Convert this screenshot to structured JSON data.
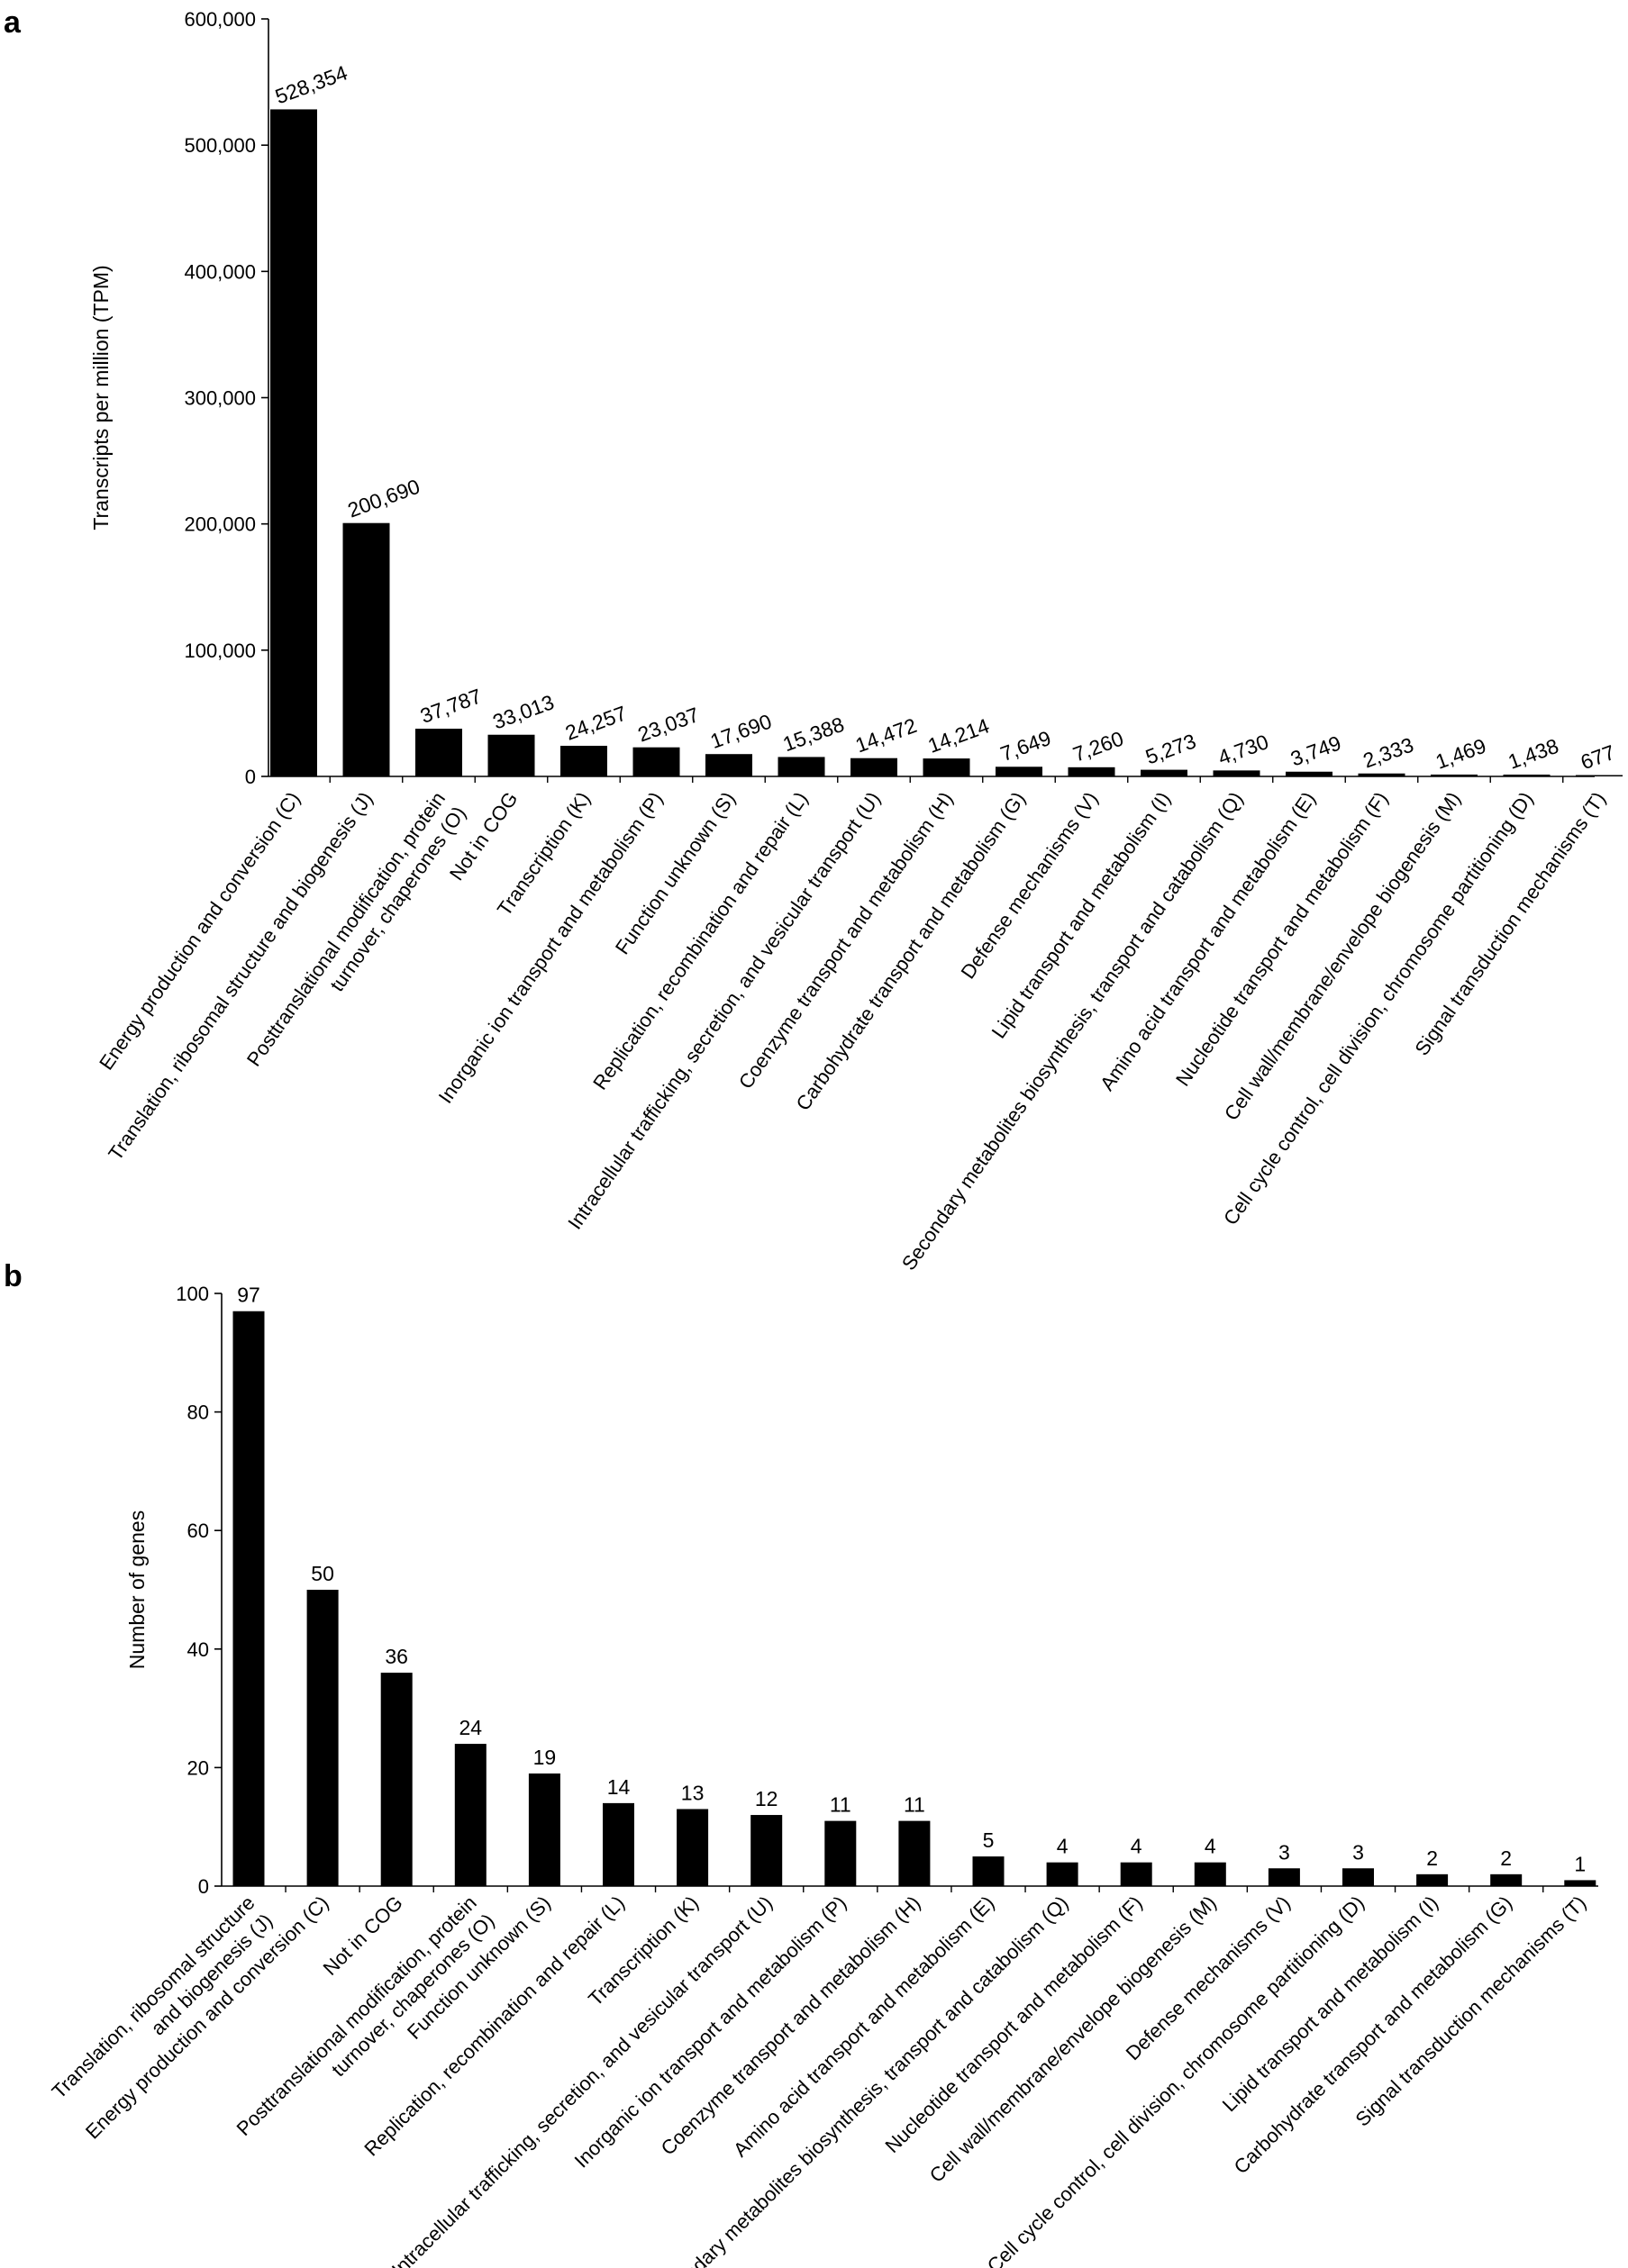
{
  "chart_data": [
    {
      "panel": "a",
      "type": "bar",
      "ylabel": "Transcripts per million (TPM)",
      "ylim": [
        0,
        600000
      ],
      "yticks": [
        0,
        100000,
        200000,
        300000,
        400000,
        500000,
        600000
      ],
      "ytick_labels": [
        "0",
        "100,000",
        "200,000",
        "300,000",
        "400,000",
        "500,000",
        "600,000"
      ],
      "categories": [
        [
          "Energy production and conversion (C)"
        ],
        [
          "Translation, ribosomal structure and biogenesis (J)"
        ],
        [
          "Posttranslational modification, protein",
          "turnover, chaperones (O)"
        ],
        [
          "Not in COG"
        ],
        [
          "Transcription (K)"
        ],
        [
          "Inorganic ion transport and metabolism (P)"
        ],
        [
          "Function unknown (S)"
        ],
        [
          "Replication, recombination and repair (L)"
        ],
        [
          "Intracellular trafficking, secretion, and vesicular transport (U)"
        ],
        [
          "Coenzyme transport and metabolism (H)"
        ],
        [
          "Carbohydrate transport and metabolism (G)"
        ],
        [
          "Defense mechanisms (V)"
        ],
        [
          "Lipid transport and metabolism (I)"
        ],
        [
          "Secondary metabolites biosynthesis, transport and catabolism (Q)"
        ],
        [
          "Amino acid transport and metabolism (E)"
        ],
        [
          "Nucleotide transport and metabolism (F)"
        ],
        [
          "Cell wall/membrane/envelope biogenesis (M)"
        ],
        [
          "Cell cycle control, cell division, chromosome partitioning (D)"
        ],
        [
          "Signal transduction mechanisms (T)"
        ]
      ],
      "values": [
        528354,
        200690,
        37787,
        33013,
        24257,
        23037,
        17690,
        15388,
        14472,
        14214,
        7649,
        7260,
        5273,
        4730,
        3749,
        2333,
        1469,
        1438,
        677
      ],
      "value_labels": [
        "528,354",
        "200,690",
        "37,787",
        "33,013",
        "24,257",
        "23,037",
        "17,690",
        "15,388",
        "14,472",
        "14,214",
        "7,649",
        "7,260",
        "5,273",
        "4,730",
        "3,749",
        "2,333",
        "1,469",
        "1,438",
        "677"
      ],
      "label_rotation": "-20deg",
      "bar_color": "#000000",
      "grid": false,
      "legend": "none"
    },
    {
      "panel": "b",
      "type": "bar",
      "ylabel": "Number of genes",
      "ylim": [
        0,
        100
      ],
      "yticks": [
        0,
        20,
        40,
        60,
        80,
        100
      ],
      "ytick_labels": [
        "0",
        "20",
        "40",
        "60",
        "80",
        "100"
      ],
      "categories": [
        [
          "Translation, ribosomal structure",
          "and biogenesis (J)"
        ],
        [
          "Energy production and conversion (C)"
        ],
        [
          "Not in COG"
        ],
        [
          "Posttranslational modification, protein",
          "turnover, chaperones (O)"
        ],
        [
          "Function unknown (S)"
        ],
        [
          "Replication, recombination and repair (L)"
        ],
        [
          "Transcription (K)"
        ],
        [
          "Intracellular trafficking, secretion, and vesicular transport (U)"
        ],
        [
          "Inorganic ion transport and metabolism (P)"
        ],
        [
          "Coenzyme transport and metabolism (H)"
        ],
        [
          "Amino acid transport and metabolism (E)"
        ],
        [
          "Secondary metabolites biosynthesis, transport and catabolism (Q)"
        ],
        [
          "Nucleotide transport and metabolism (F)"
        ],
        [
          "Cell wall/membrane/envelope biogenesis (M)"
        ],
        [
          "Defense mechanisms (V)"
        ],
        [
          "Cell cycle control, cell division, chromosome partitioning (D)"
        ],
        [
          "Lipid transport and metabolism (I)"
        ],
        [
          "Carbohydrate transport and metabolism (G)"
        ],
        [
          "Signal transduction mechanisms (T)"
        ]
      ],
      "values": [
        97,
        50,
        36,
        24,
        19,
        14,
        13,
        12,
        11,
        11,
        5,
        4,
        4,
        4,
        3,
        3,
        2,
        2,
        1
      ],
      "value_labels": [
        "97",
        "50",
        "36",
        "24",
        "19",
        "14",
        "13",
        "12",
        "11",
        "11",
        "5",
        "4",
        "4",
        "4",
        "3",
        "3",
        "2",
        "2",
        "1"
      ],
      "label_rotation": "0deg",
      "bar_color": "#000000",
      "grid": false,
      "legend": "none"
    }
  ]
}
